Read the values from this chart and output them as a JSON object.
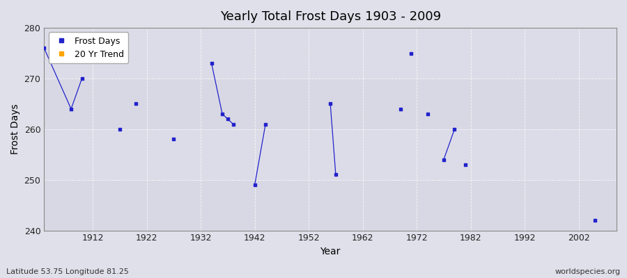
{
  "title": "Yearly Total Frost Days 1903 - 2009",
  "xlabel": "Year",
  "ylabel": "Frost Days",
  "xlim": [
    1903,
    2009
  ],
  "ylim": [
    240,
    280
  ],
  "yticks": [
    240,
    250,
    260,
    270,
    280
  ],
  "xticks": [
    1912,
    1922,
    1932,
    1942,
    1952,
    1962,
    1972,
    1982,
    1992,
    2002
  ],
  "background_color": "#e0e0ea",
  "plot_bg_color": "#dcdce8",
  "grid_color": "#ffffff",
  "line_color": "#2222cc",
  "marker_color": "#2222cc",
  "footnote_left": "Latitude 53.75 Longitude 81.25",
  "footnote_right": "worldspecies.org",
  "legend_items": [
    "Frost Days",
    "20 Yr Trend"
  ],
  "legend_colors": [
    "#2222cc",
    "#ffa500"
  ],
  "segments": [
    {
      "years": [
        1903,
        1908,
        1910
      ],
      "values": [
        276,
        264,
        270
      ]
    },
    {
      "years": [
        1917
      ],
      "values": [
        260
      ]
    },
    {
      "years": [
        1920
      ],
      "values": [
        265
      ]
    },
    {
      "years": [
        1927
      ],
      "values": [
        258
      ]
    },
    {
      "years": [
        1934,
        1936,
        1937,
        1938
      ],
      "values": [
        273,
        263,
        262,
        261
      ]
    },
    {
      "years": [
        1942,
        1944
      ],
      "values": [
        249,
        261
      ]
    },
    {
      "years": [
        1956,
        1957
      ],
      "values": [
        265,
        251
      ]
    },
    {
      "years": [
        1969
      ],
      "values": [
        264
      ]
    },
    {
      "years": [
        1971
      ],
      "values": [
        275
      ]
    },
    {
      "years": [
        1974
      ],
      "values": [
        263
      ]
    },
    {
      "years": [
        1977,
        1979
      ],
      "values": [
        254,
        260
      ]
    },
    {
      "years": [
        1981
      ],
      "values": [
        253
      ]
    },
    {
      "years": [
        2005
      ],
      "values": [
        242
      ]
    }
  ]
}
